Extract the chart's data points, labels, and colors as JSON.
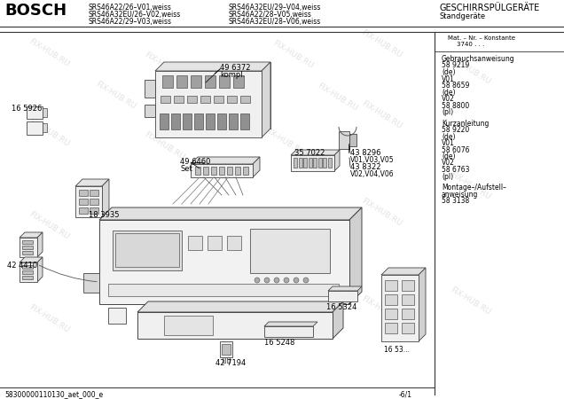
{
  "title": "BOSCH",
  "subtitle_left1": "SRS46A22/26–V01,weiss",
  "subtitle_left2": "SRS46A32EU/26–V02,weiss",
  "subtitle_left3": "SRS46A22/29–V03,weiss",
  "subtitle_mid1": "SRS46A32EU/29–V04,weiss",
  "subtitle_mid2": "SRS46A22/28–V05,weiss",
  "subtitle_mid3": "SRS46A32EU/28–V06,weiss",
  "header_right1": "GESCHIRRSPÜLGERÄTE",
  "header_right2": "Standgeräte",
  "right_panel_header": "Mat. – Nr. – Konstante",
  "right_panel_header2": "3740 . . .",
  "right_panel_text": "Gebrauchsanweisung\n58 9219\n(de)\nV01\n58 8659\n(de)\nV02\n58 8800\n(pl)\n\nKurzanleitung\n58 9220\n(de)\nV01\n58 6076\n(de)\nV02\n58 6763\n(pl)\n\nMontage–/Aufstell–\nanweisung\n58 3138",
  "bottom_left_text": "58300000110130_aet_000_e",
  "bottom_right_text": "-6/1",
  "watermark": "FIX-HUB.RU",
  "bg_color": "#ffffff",
  "line_color": "#000000",
  "text_color": "#000000",
  "watermark_color": "#d0d0d0"
}
